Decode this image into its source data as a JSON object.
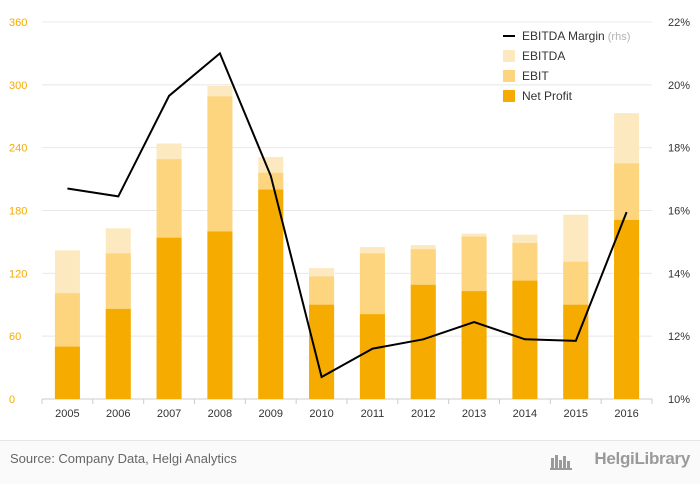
{
  "chart_data": {
    "type": "bar",
    "categories": [
      "2005",
      "2006",
      "2007",
      "2008",
      "2009",
      "2010",
      "2011",
      "2012",
      "2013",
      "2014",
      "2015",
      "2016"
    ],
    "series": [
      {
        "name": "Net Profit",
        "kind": "bar",
        "axis": "left",
        "color": "#f5ab00",
        "values": [
          50,
          86,
          154,
          160,
          200,
          90,
          81,
          109,
          103,
          113,
          90,
          171
        ]
      },
      {
        "name": "EBIT",
        "kind": "bar",
        "axis": "left",
        "color": "#fcd57e",
        "values": [
          101,
          139,
          229,
          289,
          216,
          117,
          139,
          143,
          155,
          149,
          131,
          225
        ]
      },
      {
        "name": "EBITDA",
        "kind": "bar",
        "axis": "left",
        "color": "#fde9bf",
        "values": [
          142,
          163,
          244,
          299,
          231,
          125,
          145,
          147,
          158,
          157,
          176,
          273
        ]
      },
      {
        "name": "EBITDA Margin",
        "kind": "line",
        "axis": "right",
        "color": "#000000",
        "values": [
          16.7,
          16.45,
          19.65,
          21.0,
          17.1,
          10.7,
          11.6,
          11.9,
          12.45,
          11.9,
          11.85,
          15.95
        ]
      }
    ],
    "legend": [
      {
        "label": "EBITDA Margin",
        "suffix": "(rhs)",
        "kind": "line",
        "color": "#000000"
      },
      {
        "label": "EBITDA",
        "kind": "bar",
        "color": "#fde9bf"
      },
      {
        "label": "EBIT",
        "kind": "bar",
        "color": "#fcd57e"
      },
      {
        "label": "Net Profit",
        "kind": "bar",
        "color": "#f5ab00"
      }
    ],
    "y_left": {
      "min": 0,
      "max": 360,
      "ticks": [
        "0",
        "60",
        "120",
        "180",
        "240",
        "300",
        "360"
      ],
      "color": "#f5ab00"
    },
    "y_right": {
      "min": 10,
      "max": 22,
      "ticks": [
        "10%",
        "12%",
        "14%",
        "16%",
        "18%",
        "20%",
        "22%"
      ]
    },
    "grid": true,
    "legend_position": "top-right",
    "title": "",
    "xlabel": "",
    "ylabel": ""
  },
  "footer": {
    "source": "Source: Company Data, Helgi Analytics",
    "brand": "HelgiLibrary"
  }
}
